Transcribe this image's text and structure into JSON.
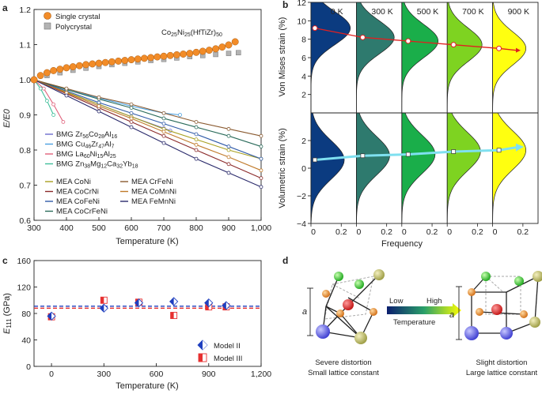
{
  "panel_labels": {
    "a": "a",
    "b": "b",
    "c": "c",
    "d": "d"
  },
  "colors": {
    "single_crystal": "#f28c28",
    "polycrystal": "#b3b3b3",
    "model2": "#1f3fbf",
    "model3": "#e63030"
  },
  "panel_a": {
    "legend_single": "Single crystal",
    "legend_poly": "Polycrystal",
    "annotation_base": "Co",
    "annotation_sub1": "25",
    "annotation_mid": "Ni",
    "annotation_sub2": "25",
    "annotation_end": "(HfTiZr)",
    "annotation_sub3": "50",
    "legend_bmg1": "BMG Zr56Co28Al16",
    "legend_bmg2": "BMG Cu46Zr47Al7",
    "legend_bmg3": "BMG La60Ni15Al25",
    "legend_bmg4": "BMG Zn38Mg12Ca32Yb18",
    "legend_mea1": "MEA CoNi",
    "legend_mea2": "MEA CoCrNi",
    "legend_mea3": "MEA CoFeNi",
    "legend_mea4": "MEA CoCrFeNi",
    "legend_mea5": "MEA CrFeNi",
    "legend_mea6": "MEA CoMnNi",
    "legend_mea7": "MEA FeMnNi"
  },
  "panel_b": {
    "temps": [
      "0 K",
      "300 K",
      "500 K",
      "700 K",
      "900 K"
    ],
    "ylabel_top": "Von Mises strain (%)",
    "ylabel_bottom": "Volumetric strain (%)",
    "xlabel": "Frequency",
    "fill_colors": [
      "#0b3b80",
      "#2e7a6e",
      "#1aae4a",
      "#7ed321",
      "#ffff10"
    ]
  },
  "panel_c": {
    "legend_model2": "Model II",
    "legend_model3": "Model III"
  },
  "panel_d": {
    "low": "Low",
    "high": "High",
    "temperature": "Temperature",
    "a_label_left": "a",
    "a_label_right": "a",
    "caption_left_1": "Severe distortion",
    "caption_left_2": "Small lattice constant",
    "caption_right_1": "Slight distortion",
    "caption_right_2": "Large lattice constant"
  },
  "chart_data": [
    {
      "type": "line",
      "panel": "a",
      "xlabel": "Temperature (K)",
      "ylabel": "E/E0",
      "xlim": [
        300,
        1000
      ],
      "ylim": [
        0.6,
        1.2
      ],
      "xticks": [
        300,
        400,
        500,
        600,
        700,
        800,
        900,
        1000
      ],
      "xtick_labels": [
        "300",
        "400",
        "500",
        "600",
        "700",
        "800",
        "900",
        "1,000"
      ],
      "yticks": [
        0.6,
        0.7,
        0.8,
        0.9,
        1.0,
        1.1,
        1.2
      ],
      "ytick_labels": [
        "0.6",
        "0.7",
        "0.8",
        "0.9",
        "1.0",
        "1.1",
        "1.2"
      ],
      "series": [
        {
          "name": "Single crystal",
          "x": [
            300,
            320,
            340,
            360,
            380,
            400,
            420,
            440,
            460,
            480,
            500,
            520,
            540,
            560,
            580,
            600,
            620,
            640,
            660,
            680,
            700,
            720,
            740,
            760,
            780,
            800,
            820,
            840,
            860,
            880,
            900,
            920
          ],
          "y": [
            1.0,
            1.012,
            1.02,
            1.026,
            1.03,
            1.034,
            1.037,
            1.04,
            1.043,
            1.045,
            1.047,
            1.049,
            1.051,
            1.053,
            1.055,
            1.057,
            1.059,
            1.061,
            1.063,
            1.065,
            1.067,
            1.069,
            1.071,
            1.073,
            1.075,
            1.078,
            1.081,
            1.084,
            1.088,
            1.093,
            1.099,
            1.108
          ]
        },
        {
          "name": "Polycrystal",
          "x": [
            300,
            340,
            380,
            420,
            460,
            500,
            540,
            580,
            620,
            660,
            700,
            740,
            780,
            820,
            860,
            900,
            930
          ],
          "y": [
            1.0,
            1.012,
            1.02,
            1.027,
            1.033,
            1.038,
            1.043,
            1.047,
            1.051,
            1.055,
            1.058,
            1.062,
            1.066,
            1.069,
            1.072,
            1.075,
            1.077
          ]
        },
        {
          "name": "BMG Zr56Co28Al16",
          "x": [
            300,
            400,
            500,
            600,
            700,
            720
          ],
          "y": [
            1.0,
            0.965,
            0.93,
            0.895,
            0.862,
            0.855
          ]
        },
        {
          "name": "BMG Cu46Zr47Al7",
          "x": [
            300,
            400,
            500,
            600,
            700,
            750
          ],
          "y": [
            1.0,
            0.972,
            0.948,
            0.925,
            0.905,
            0.9
          ]
        },
        {
          "name": "BMG La60Ni15Al25",
          "x": [
            300,
            330,
            360,
            390
          ],
          "y": [
            1.0,
            0.975,
            0.93,
            0.88
          ]
        },
        {
          "name": "BMG Zn38Mg12Ca32Yb18",
          "x": [
            300,
            320,
            340,
            360
          ],
          "y": [
            1.0,
            0.975,
            0.94,
            0.9
          ]
        },
        {
          "name": "MEA CoNi",
          "x": [
            300,
            400,
            500,
            600,
            700,
            800,
            900,
            1000
          ],
          "y": [
            1.0,
            0.965,
            0.93,
            0.895,
            0.86,
            0.83,
            0.8,
            0.775
          ]
        },
        {
          "name": "MEA CoCrNi",
          "x": [
            300,
            400,
            500,
            600,
            700,
            800,
            900,
            1000
          ],
          "y": [
            1.0,
            0.96,
            0.92,
            0.88,
            0.84,
            0.8,
            0.76,
            0.72
          ]
        },
        {
          "name": "MEA CoFeNi",
          "x": [
            300,
            400,
            500,
            600,
            700,
            800,
            900,
            1000
          ],
          "y": [
            1.0,
            0.968,
            0.935,
            0.905,
            0.875,
            0.845,
            0.81,
            0.775
          ]
        },
        {
          "name": "MEA CoCrFeNi",
          "x": [
            300,
            400,
            500,
            600,
            700,
            800,
            900,
            1000
          ],
          "y": [
            1.0,
            0.972,
            0.945,
            0.92,
            0.89,
            0.865,
            0.84,
            0.81
          ]
        },
        {
          "name": "MEA CrFeNi",
          "x": [
            300,
            400,
            500,
            600,
            700,
            800,
            900,
            1000
          ],
          "y": [
            1.0,
            0.975,
            0.95,
            0.93,
            0.905,
            0.88,
            0.86,
            0.84
          ]
        },
        {
          "name": "MEA CoMnNi",
          "x": [
            300,
            400,
            500,
            600,
            700,
            800,
            900,
            1000
          ],
          "y": [
            1.0,
            0.963,
            0.925,
            0.89,
            0.852,
            0.815,
            0.78,
            0.742
          ]
        },
        {
          "name": "MEA FeMnNi",
          "x": [
            300,
            400,
            500,
            600,
            700,
            800,
            900,
            1000
          ],
          "y": [
            1.0,
            0.955,
            0.91,
            0.865,
            0.82,
            0.775,
            0.735,
            0.695
          ]
        }
      ]
    },
    {
      "type": "area",
      "panel": "b",
      "xlabel": "Frequency",
      "xticks": [
        0,
        0.2
      ],
      "xtick_labels": [
        "0",
        "0.2"
      ],
      "top": {
        "ylabel": "Von Mises strain (%)",
        "ylim": [
          0,
          12
        ],
        "yticks": [
          2,
          4,
          6,
          8,
          10,
          12
        ],
        "ytick_labels": [
          "2",
          "4",
          "6",
          "8",
          "10",
          "12"
        ]
      },
      "bottom": {
        "ylabel": "Volumetric strain (%)",
        "ylim": [
          -4,
          4
        ],
        "yticks": [
          -4,
          -2,
          0,
          2
        ],
        "ytick_labels": [
          "−4",
          "−2",
          "0",
          "2"
        ]
      },
      "temperatures": [
        "0 K",
        "300 K",
        "500 K",
        "700 K",
        "900 K"
      ],
      "von_mises_mean": [
        9.2,
        8.2,
        7.8,
        7.4,
        7.0
      ],
      "volumetric_mean": [
        0.6,
        0.9,
        1.0,
        1.2,
        1.3
      ]
    },
    {
      "type": "scatter",
      "panel": "c",
      "xlabel": "Temperature (K)",
      "ylabel": "E111 (GPa)",
      "xlim": [
        -100,
        1200
      ],
      "ylim": [
        0,
        160
      ],
      "xticks": [
        0,
        300,
        600,
        900,
        1200
      ],
      "xtick_labels": [
        "0",
        "300",
        "600",
        "900",
        "1,200"
      ],
      "yticks": [
        0,
        40,
        80,
        120,
        160
      ],
      "ytick_labels": [
        "0",
        "40",
        "80",
        "120",
        "160"
      ],
      "series": [
        {
          "name": "Model II",
          "x": [
            0,
            300,
            500,
            700,
            900,
            1000
          ],
          "y": [
            76,
            88,
            96,
            98,
            96,
            92
          ],
          "mean": 91
        },
        {
          "name": "Model III",
          "x": [
            0,
            300,
            500,
            700,
            900,
            1000
          ],
          "y": [
            75,
            100,
            97,
            77,
            90,
            90
          ],
          "mean": 88
        }
      ]
    }
  ]
}
